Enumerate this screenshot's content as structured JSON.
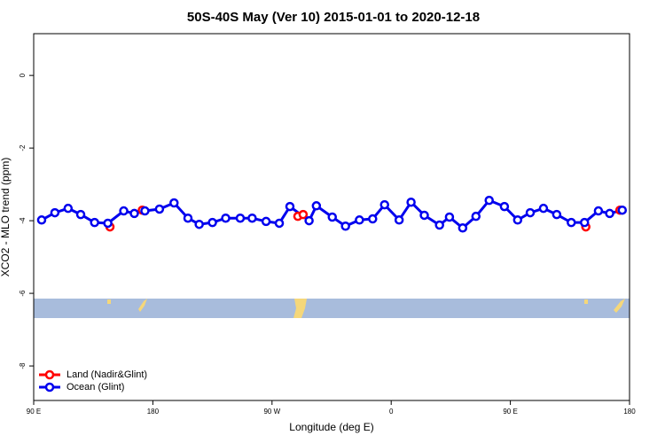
{
  "chart_data": {
    "type": "line",
    "title": "50S-40S May (Ver 10)   2015-01-01 to 2020-12-18",
    "x_label": "Longitude (deg E)",
    "y_label": "XCO2 - MLO trend (ppm)",
    "xlim": [
      90,
      540
    ],
    "ylim": [
      -8.95,
      1.15
    ],
    "xticks": [
      {
        "value": 90,
        "label": "90 E"
      },
      180,
      {
        "value": 270,
        "label": "90 W"
      },
      {
        "value": 360,
        "label": "0"
      },
      {
        "value": 450,
        "label": "90 E"
      },
      {
        "value": 540,
        "label": "180"
      }
    ],
    "yticks": [
      0,
      -2,
      -4,
      -6,
      -8
    ],
    "legend": "bottom-left",
    "series": [
      {
        "name": "Land (Nadir&Glint)",
        "color": "#ff0000",
        "line": false,
        "x": [
          147.6,
          172,
          289.5,
          293.5,
          507,
          532.7
        ],
        "values": [
          -4.17,
          -3.71,
          -3.88,
          -3.83,
          -4.17,
          -3.71
        ]
      },
      {
        "name": "Ocean (Glint)",
        "color": "#0000ee",
        "line": true,
        "x": [
          96,
          106,
          116,
          125.5,
          136,
          146,
          158,
          166,
          174,
          185,
          196,
          206.5,
          215,
          225,
          235,
          246,
          255,
          265.5,
          275.5,
          283.5,
          298,
          303.5,
          315.5,
          325.5,
          336,
          346,
          355,
          366,
          375,
          385,
          396.5,
          404,
          414,
          424,
          434,
          445.5,
          455.5,
          465,
          475,
          485,
          496,
          506,
          516.5,
          525,
          534.5
        ],
        "values": [
          -3.98,
          -3.78,
          -3.66,
          -3.83,
          -4.05,
          -4.07,
          -3.73,
          -3.8,
          -3.73,
          -3.68,
          -3.51,
          -3.93,
          -4.1,
          -4.05,
          -3.93,
          -3.93,
          -3.93,
          -4.02,
          -4.07,
          -3.61,
          -4.0,
          -3.59,
          -3.9,
          -4.15,
          -3.98,
          -3.95,
          -3.56,
          -3.98,
          -3.49,
          -3.85,
          -4.12,
          -3.9,
          -4.2,
          -3.88,
          -3.44,
          -3.61,
          -3.98,
          -3.78,
          -3.66,
          -3.83,
          -4.05,
          -4.05,
          -3.73,
          -3.8,
          -3.71
        ]
      }
    ]
  }
}
